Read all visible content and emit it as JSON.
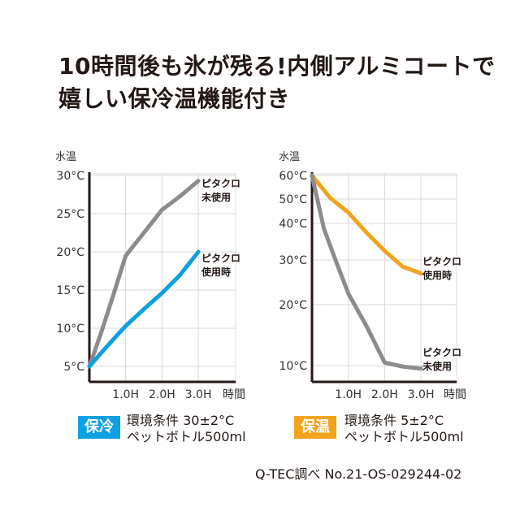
{
  "headline": {
    "line1": "10時間後も氷が残る!内側アルミコートで",
    "line2": "嬉しい保冷温機能付き"
  },
  "colors": {
    "gray": "#8c8c8c",
    "blue": "#0ea0e0",
    "orange": "#f0a31c",
    "axis": "#231815",
    "grid": "#d9d9d9"
  },
  "cold": {
    "badge": "保冷",
    "cond1": "環境条件 30±2°C",
    "cond2": "ペットボトル500ml"
  },
  "warm": {
    "badge": "保温",
    "cond1": "環境条件 5±2°C",
    "cond2": "ペットボトル500ml"
  },
  "source": "Q-TEC調べ No.21-OS-029244-02",
  "chart_data": [
    {
      "type": "line",
      "ylabel": "水温",
      "xlabel": "時間",
      "x_ticks": [
        "1.0H",
        "2.0H",
        "3.0H"
      ],
      "y_ticks": [
        "5°C",
        "10°C",
        "15°C",
        "20°C",
        "25°C",
        "30°C"
      ],
      "y_tick_values": [
        5,
        10,
        15,
        20,
        25,
        30
      ],
      "xlim": [
        0,
        3.5
      ],
      "ylim": [
        5,
        30
      ],
      "grid": true,
      "series": [
        {
          "name": "ピタクロ 未使用",
          "label_lines": [
            "ピタクロ",
            "未使用"
          ],
          "color": "#8c8c8c",
          "x": [
            0,
            0.33,
            0.67,
            1.0,
            1.5,
            2.0,
            2.5,
            3.0
          ],
          "y": [
            5,
            9.5,
            14.5,
            19.5,
            22.5,
            25.5,
            27.3,
            29.3
          ]
        },
        {
          "name": "ピタクロ 使用時",
          "label_lines": [
            "ピタクロ",
            "使用時"
          ],
          "color": "#0ea0e0",
          "x": [
            0,
            0.33,
            0.67,
            1.0,
            1.5,
            2.0,
            2.5,
            3.0
          ],
          "y": [
            5,
            6.8,
            8.6,
            10.3,
            12.5,
            14.6,
            17,
            20
          ]
        }
      ]
    },
    {
      "type": "line",
      "ylabel": "水温",
      "xlabel": "時間",
      "x_ticks": [
        "1.0H",
        "2.0H",
        "3.0H"
      ],
      "y_ticks": [
        "10°C",
        "20°C",
        "30°C",
        "40°C",
        "50°C",
        "60°C"
      ],
      "y_tick_values": [
        10,
        20,
        30,
        40,
        50,
        60
      ],
      "xlim": [
        0,
        3.5
      ],
      "ylim": [
        7,
        60
      ],
      "grid": true,
      "series": [
        {
          "name": "ピタクロ 使用時",
          "label_lines": [
            "ピタクロ",
            "使用時"
          ],
          "color": "#f0a31c",
          "x": [
            0,
            0.5,
            1.0,
            1.5,
            2.0,
            2.5,
            3.0
          ],
          "y": [
            60,
            50.5,
            44.5,
            37.5,
            32.5,
            28.5,
            27
          ]
        },
        {
          "name": "ピタクロ 未使用",
          "label_lines": [
            "ピタクロ",
            "未使用"
          ],
          "color": "#8c8c8c",
          "x": [
            0,
            0.33,
            0.67,
            1.0,
            1.5,
            2.0,
            2.5,
            3.0
          ],
          "y": [
            60,
            38.5,
            29.5,
            22.5,
            16.5,
            10.5,
            9.5,
            8.5
          ]
        }
      ]
    }
  ]
}
